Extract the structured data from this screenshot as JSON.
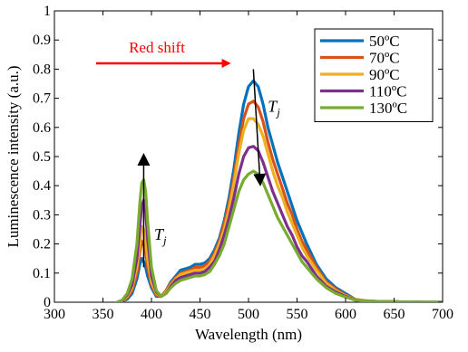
{
  "chart_data": {
    "type": "line",
    "xlabel": "Wavelength (nm)",
    "ylabel": "Luminescence intensity (a.u.)",
    "xlim": [
      300,
      700
    ],
    "ylim": [
      0,
      1
    ],
    "xticks": [
      300,
      350,
      400,
      450,
      500,
      550,
      600,
      650,
      700
    ],
    "yticks": [
      0,
      0.1,
      0.2,
      0.3,
      0.4,
      0.5,
      0.6,
      0.7,
      0.8,
      0.9,
      1
    ],
    "ytick_labels": [
      "0",
      "0.1",
      "0.2",
      "0.3",
      "0.4",
      "0.5",
      "0.6",
      "0.7",
      "0.8",
      "0.9",
      "1"
    ],
    "grid": false,
    "legend_position": "top-right",
    "x": [
      365,
      370,
      375,
      380,
      385,
      388,
      390,
      392,
      394,
      396,
      400,
      405,
      410,
      415,
      420,
      425,
      430,
      435,
      440,
      445,
      450,
      455,
      460,
      465,
      470,
      475,
      480,
      485,
      490,
      495,
      500,
      505,
      510,
      515,
      520,
      525,
      530,
      535,
      540,
      545,
      550,
      555,
      560,
      570,
      580,
      590,
      600,
      610,
      620,
      630,
      640,
      650,
      660,
      670,
      680,
      690,
      700
    ],
    "series": [
      {
        "name": "50ºC",
        "color": "#0072BD",
        "values": [
          0,
          0.005,
          0.01,
          0.03,
          0.08,
          0.13,
          0.15,
          0.14,
          0.12,
          0.09,
          0.05,
          0.02,
          0.02,
          0.04,
          0.07,
          0.09,
          0.11,
          0.115,
          0.12,
          0.13,
          0.13,
          0.135,
          0.15,
          0.18,
          0.22,
          0.28,
          0.36,
          0.46,
          0.58,
          0.68,
          0.74,
          0.76,
          0.74,
          0.68,
          0.6,
          0.54,
          0.48,
          0.43,
          0.38,
          0.33,
          0.28,
          0.24,
          0.2,
          0.13,
          0.08,
          0.05,
          0.03,
          0.01,
          0.005,
          0.003,
          0.002,
          0.002,
          0.001,
          0.001,
          0,
          0,
          0
        ]
      },
      {
        "name": "70ºC",
        "color": "#D95319",
        "values": [
          0,
          0.005,
          0.015,
          0.04,
          0.1,
          0.17,
          0.21,
          0.2,
          0.17,
          0.12,
          0.06,
          0.025,
          0.02,
          0.04,
          0.065,
          0.085,
          0.1,
          0.105,
          0.11,
          0.12,
          0.12,
          0.125,
          0.14,
          0.17,
          0.21,
          0.27,
          0.34,
          0.43,
          0.54,
          0.63,
          0.68,
          0.69,
          0.67,
          0.62,
          0.55,
          0.49,
          0.44,
          0.39,
          0.34,
          0.3,
          0.25,
          0.21,
          0.18,
          0.12,
          0.07,
          0.045,
          0.025,
          0.01,
          0.005,
          0.003,
          0.002,
          0.002,
          0.001,
          0.001,
          0,
          0,
          0
        ]
      },
      {
        "name": "90ºC",
        "color": "#EDB120",
        "values": [
          0,
          0.006,
          0.02,
          0.05,
          0.12,
          0.2,
          0.26,
          0.25,
          0.21,
          0.15,
          0.07,
          0.03,
          0.02,
          0.035,
          0.06,
          0.08,
          0.095,
          0.1,
          0.105,
          0.11,
          0.11,
          0.115,
          0.13,
          0.16,
          0.2,
          0.25,
          0.32,
          0.41,
          0.51,
          0.59,
          0.63,
          0.63,
          0.61,
          0.57,
          0.51,
          0.45,
          0.4,
          0.36,
          0.31,
          0.27,
          0.23,
          0.19,
          0.16,
          0.11,
          0.065,
          0.04,
          0.022,
          0.01,
          0.005,
          0.003,
          0.002,
          0.002,
          0.001,
          0.001,
          0,
          0,
          0
        ]
      },
      {
        "name": "110ºC",
        "color": "#7E2F8E",
        "values": [
          0,
          0.007,
          0.025,
          0.06,
          0.15,
          0.26,
          0.33,
          0.35,
          0.31,
          0.22,
          0.09,
          0.035,
          0.02,
          0.03,
          0.055,
          0.075,
          0.085,
          0.09,
          0.095,
          0.1,
          0.1,
          0.105,
          0.12,
          0.14,
          0.18,
          0.23,
          0.29,
          0.36,
          0.44,
          0.5,
          0.53,
          0.535,
          0.52,
          0.48,
          0.43,
          0.38,
          0.34,
          0.3,
          0.26,
          0.23,
          0.19,
          0.16,
          0.14,
          0.09,
          0.055,
          0.035,
          0.02,
          0.008,
          0.004,
          0.003,
          0.002,
          0.002,
          0.001,
          0.001,
          0,
          0,
          0
        ]
      },
      {
        "name": "130ºC",
        "color": "#77AC30",
        "values": [
          0,
          0.008,
          0.03,
          0.08,
          0.2,
          0.34,
          0.41,
          0.42,
          0.38,
          0.28,
          0.12,
          0.04,
          0.02,
          0.03,
          0.05,
          0.065,
          0.075,
          0.08,
          0.085,
          0.09,
          0.09,
          0.095,
          0.105,
          0.13,
          0.16,
          0.2,
          0.26,
          0.32,
          0.38,
          0.42,
          0.44,
          0.45,
          0.44,
          0.41,
          0.37,
          0.33,
          0.29,
          0.26,
          0.23,
          0.2,
          0.17,
          0.14,
          0.12,
          0.08,
          0.05,
          0.03,
          0.018,
          0.007,
          0.004,
          0.003,
          0.002,
          0.002,
          0.001,
          0.001,
          0,
          0,
          0
        ]
      }
    ],
    "annotations": {
      "red_shift_label": "Red shift",
      "tj_label_left": "T",
      "tj_sub_left": "j",
      "tj_label_right": "T",
      "tj_sub_right": "j",
      "red_arrow_color": "#FF0000",
      "black_arrow_color": "#000000",
      "left_arrow_x": [
        392,
        392
      ],
      "left_arrow_y": [
        0.12,
        0.5
      ],
      "right_arrow_x": [
        505,
        512
      ],
      "right_arrow_y": [
        0.8,
        0.41
      ],
      "red_arrow_x": [
        343,
        480
      ],
      "red_arrow_y": [
        0.82,
        0.82
      ]
    }
  }
}
